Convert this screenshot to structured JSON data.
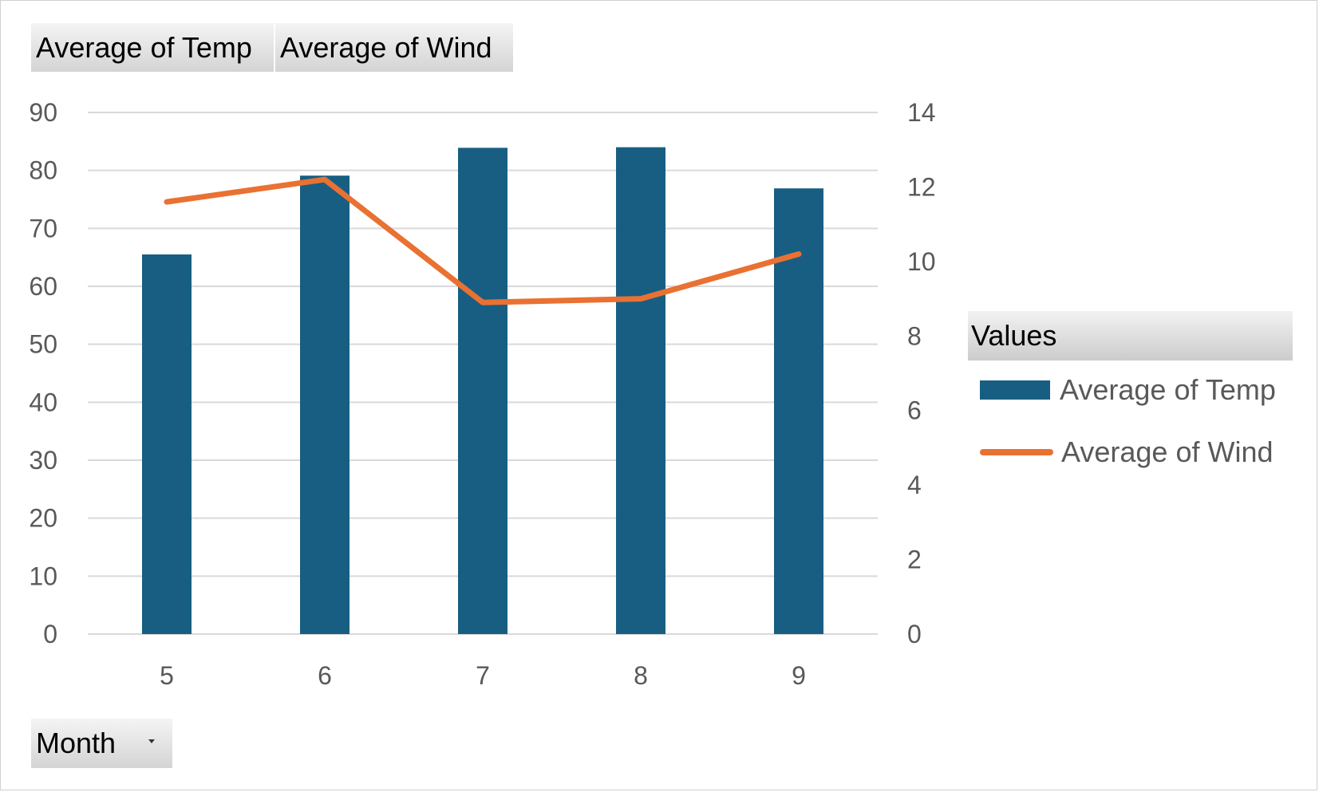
{
  "field_buttons": {
    "temp_label": "Average  of Temp",
    "wind_label": "Average  of Wind",
    "month_label": "Month"
  },
  "legend": {
    "header": "Values",
    "items": [
      {
        "label": "Average of Temp"
      },
      {
        "label": "Average of Wind"
      }
    ]
  },
  "colors": {
    "bar": "#175e82",
    "line": "#e97132",
    "grid": "#d9d9d9"
  },
  "icons": {
    "month_dropdown": "chevron-down-icon"
  },
  "chart_data": {
    "type": "bar",
    "categories": [
      "5",
      "6",
      "7",
      "8",
      "9"
    ],
    "series": [
      {
        "name": "Average of Temp",
        "type": "bar",
        "axis": "primary",
        "values": [
          65.5,
          79.1,
          83.9,
          84.0,
          76.9
        ]
      },
      {
        "name": "Average of Wind",
        "type": "line",
        "axis": "secondary",
        "values": [
          11.6,
          12.2,
          8.9,
          9.0,
          10.2
        ]
      }
    ],
    "title": "",
    "xlabel": "",
    "ylabel": "",
    "ylim": [
      0,
      90
    ],
    "y2lim": [
      0,
      14
    ],
    "yticks": [
      "0",
      "10",
      "20",
      "30",
      "40",
      "50",
      "60",
      "70",
      "80",
      "90"
    ],
    "y2ticks": [
      "0",
      "2",
      "4",
      "6",
      "8",
      "10",
      "12",
      "14"
    ],
    "grid": true,
    "legend_position": "right"
  }
}
